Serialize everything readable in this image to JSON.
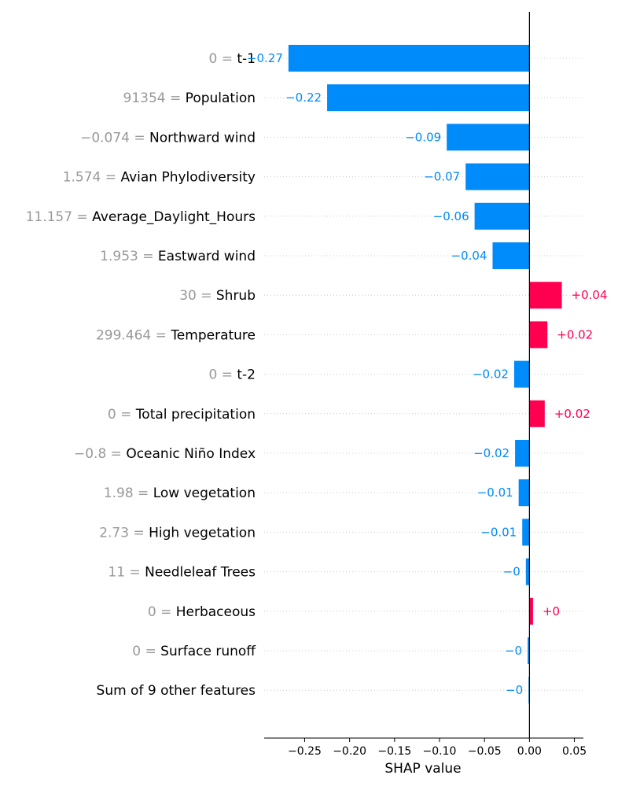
{
  "chart_data": {
    "type": "bar",
    "title": "",
    "xlabel": "SHAP value",
    "ylabel": "",
    "xlim": [
      -0.295,
      0.06
    ],
    "grid": true,
    "colors": {
      "negative": "#008bfb",
      "positive": "#ff0051"
    },
    "x_ticks": [
      {
        "value": -0.25,
        "label": "−0.25"
      },
      {
        "value": -0.2,
        "label": "−0.20"
      },
      {
        "value": -0.15,
        "label": "−0.15"
      },
      {
        "value": -0.1,
        "label": "−0.10"
      },
      {
        "value": -0.05,
        "label": "−0.05"
      },
      {
        "value": 0.0,
        "label": "0.00"
      },
      {
        "value": 0.05,
        "label": "0.05"
      }
    ],
    "features": [
      {
        "feature_value": "0",
        "name": "t-1",
        "shap": -0.268,
        "label": "−0.27"
      },
      {
        "feature_value": "91354",
        "name": "Population",
        "shap": -0.225,
        "label": "−0.22"
      },
      {
        "feature_value": "−0.074",
        "name": "Northward wind",
        "shap": -0.092,
        "label": "−0.09"
      },
      {
        "feature_value": "1.574",
        "name": "Avian Phylodiversity",
        "shap": -0.071,
        "label": "−0.07"
      },
      {
        "feature_value": "11.157",
        "name": "Average_Daylight_Hours",
        "shap": -0.061,
        "label": "−0.06"
      },
      {
        "feature_value": "1.953",
        "name": "Eastward wind",
        "shap": -0.041,
        "label": "−0.04"
      },
      {
        "feature_value": "30",
        "name": "Shrub",
        "shap": 0.036,
        "label": "+0.04"
      },
      {
        "feature_value": "299.464",
        "name": "Temperature",
        "shap": 0.02,
        "label": "+0.02"
      },
      {
        "feature_value": "0",
        "name": "t-2",
        "shap": -0.017,
        "label": "−0.02"
      },
      {
        "feature_value": "0",
        "name": "Total precipitation",
        "shap": 0.017,
        "label": "+0.02"
      },
      {
        "feature_value": "−0.8",
        "name": "Oceanic Niño Index",
        "shap": -0.016,
        "label": "−0.02"
      },
      {
        "feature_value": "1.98",
        "name": "Low vegetation",
        "shap": -0.012,
        "label": "−0.01"
      },
      {
        "feature_value": "2.73",
        "name": "High vegetation",
        "shap": -0.008,
        "label": "−0.01"
      },
      {
        "feature_value": "11",
        "name": "Needleleaf Trees",
        "shap": -0.004,
        "label": "−0"
      },
      {
        "feature_value": "0",
        "name": "Herbaceous",
        "shap": 0.004,
        "label": "+0"
      },
      {
        "feature_value": "0",
        "name": "Surface runoff",
        "shap": -0.002,
        "label": "−0"
      },
      {
        "feature_value": "",
        "name": "Sum of 9 other features",
        "shap": -0.001,
        "label": "−0"
      }
    ]
  }
}
